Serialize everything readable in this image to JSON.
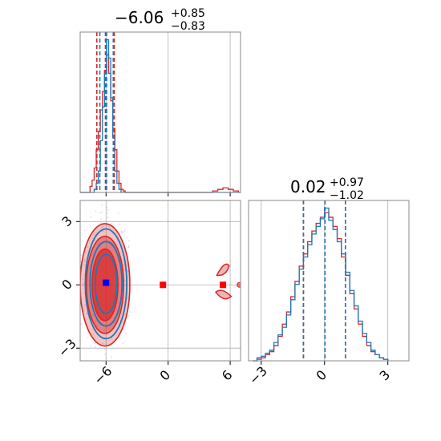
{
  "chart_data": {
    "type": "corner",
    "colors": {
      "series_a": "#d62728",
      "series_b": "#1f77b4",
      "marker_red": "#ff0000",
      "marker_blue": "#0000ff",
      "grid": "#b0b0b0",
      "frame": "#888888"
    },
    "params": [
      {
        "title_main": "−6.06",
        "title_sup": "+0.85",
        "title_sub": "−0.83",
        "median": -6.06,
        "q_low": -6.89,
        "q_high": -5.21
      },
      {
        "title_main": "0.02",
        "title_sup": "+0.97",
        "title_sub": "−1.02",
        "median": 0.02,
        "q_low": -1.0,
        "q_high": 0.99
      }
    ],
    "panels": [
      {
        "id": "hist-p1",
        "type": "histogram",
        "xlim": [
          -8.5,
          7
        ],
        "xticks": [
          -6,
          0,
          6
        ],
        "tick_labels_shown": false,
        "series": [
          {
            "name": "",
            "color": "#d62728",
            "quantiles": [
              -6.89,
              -6.06,
              -5.21
            ],
            "bins": [
              [
                -8.5,
                0
              ],
              [
                -7.75,
                0
              ],
              [
                -7.55,
                0.04
              ],
              [
                -7.35,
                0.08
              ],
              [
                -7.15,
                0.16
              ],
              [
                -6.95,
                0.28
              ],
              [
                -6.75,
                0.4
              ],
              [
                -6.55,
                0.54
              ],
              [
                -6.35,
                0.66
              ],
              [
                -6.15,
                0.8
              ],
              [
                -5.95,
                0.9
              ],
              [
                -5.75,
                0.78
              ],
              [
                -5.55,
                0.6
              ],
              [
                -5.35,
                0.42
              ],
              [
                -5.15,
                0.28
              ],
              [
                -4.95,
                0.14
              ],
              [
                -4.75,
                0.06
              ],
              [
                -4.55,
                0.02
              ],
              [
                -4.35,
                0.01
              ],
              [
                -4.15,
                0
              ],
              [
                4.3,
                0.01
              ],
              [
                4.8,
                0.02
              ],
              [
                5.3,
                0.03
              ],
              [
                5.8,
                0.02
              ],
              [
                6.3,
                0.01
              ],
              [
                6.8,
                0
              ]
            ]
          },
          {
            "name": "",
            "color": "#1f77b4",
            "quantiles": [
              -6.6,
              -5.95,
              -5.3
            ],
            "bins": [
              [
                -8.5,
                0
              ],
              [
                -7.35,
                0
              ],
              [
                -7.15,
                0.02
              ],
              [
                -6.95,
                0.06
              ],
              [
                -6.75,
                0.14
              ],
              [
                -6.55,
                0.34
              ],
              [
                -6.35,
                0.56
              ],
              [
                -6.15,
                0.78
              ],
              [
                -5.95,
                1.0
              ],
              [
                -5.75,
                0.88
              ],
              [
                -5.55,
                0.62
              ],
              [
                -5.35,
                0.36
              ],
              [
                -5.15,
                0.14
              ],
              [
                -4.95,
                0.06
              ],
              [
                -4.75,
                0.02
              ],
              [
                -4.55,
                0
              ],
              [
                7,
                0
              ]
            ]
          }
        ]
      },
      {
        "id": "joint-p1-p2",
        "type": "contour",
        "xlim": [
          -8.5,
          7
        ],
        "ylim": [
          -3.6,
          4.0
        ],
        "xticks": [
          -6,
          0,
          6
        ],
        "yticks": [
          -3,
          0,
          3
        ],
        "xtick_labels": [
          "−6",
          "0",
          "6"
        ],
        "ytick_labels": [
          "−3",
          "0",
          "3"
        ],
        "points": [
          {
            "label": "",
            "x": -6.0,
            "y": 0.1,
            "marker": "square",
            "color": "#0000ff"
          },
          {
            "label": "",
            "x": -0.5,
            "y": 0.0,
            "marker": "square",
            "color": "#ff0000"
          },
          {
            "label": "",
            "x": 5.3,
            "y": 0.0,
            "marker": "square",
            "color": "#ff0000"
          }
        ]
      },
      {
        "id": "hist-p2",
        "type": "histogram",
        "xlim": [
          -3.6,
          4.0
        ],
        "xticks": [
          -3,
          0,
          3
        ],
        "xtick_labels": [
          "−3",
          "0",
          "3"
        ],
        "series": [
          {
            "name": "",
            "color": "#d62728",
            "quantiles": [
              -1.0,
              0.02,
              0.99
            ],
            "bins": [
              [
                -3.4,
                0
              ],
              [
                -3.2,
                0.01
              ],
              [
                -3.0,
                0.02
              ],
              [
                -2.8,
                0.04
              ],
              [
                -2.6,
                0.06
              ],
              [
                -2.4,
                0.1
              ],
              [
                -2.2,
                0.16
              ],
              [
                -2.0,
                0.24
              ],
              [
                -1.8,
                0.32
              ],
              [
                -1.6,
                0.42
              ],
              [
                -1.4,
                0.52
              ],
              [
                -1.2,
                0.62
              ],
              [
                -1.0,
                0.7
              ],
              [
                -0.8,
                0.78
              ],
              [
                -0.6,
                0.85
              ],
              [
                -0.4,
                0.9
              ],
              [
                -0.2,
                0.94
              ],
              [
                0.0,
                0.97
              ],
              [
                0.2,
                0.94
              ],
              [
                0.4,
                0.88
              ],
              [
                0.6,
                0.8
              ],
              [
                0.8,
                0.68
              ],
              [
                1.0,
                0.56
              ],
              [
                1.2,
                0.44
              ],
              [
                1.4,
                0.34
              ],
              [
                1.6,
                0.24
              ],
              [
                1.8,
                0.16
              ],
              [
                2.0,
                0.1
              ],
              [
                2.2,
                0.06
              ],
              [
                2.4,
                0.04
              ],
              [
                2.6,
                0.02
              ],
              [
                2.8,
                0.01
              ],
              [
                3.0,
                0
              ]
            ]
          },
          {
            "name": "",
            "color": "#1f77b4",
            "quantiles": [
              -1.0,
              0.02,
              0.99
            ],
            "bins": [
              [
                -3.4,
                0
              ],
              [
                -3.2,
                0.02
              ],
              [
                -3.0,
                0.03
              ],
              [
                -2.8,
                0.05
              ],
              [
                -2.6,
                0.07
              ],
              [
                -2.4,
                0.12
              ],
              [
                -2.2,
                0.17
              ],
              [
                -2.0,
                0.22
              ],
              [
                -1.8,
                0.3
              ],
              [
                -1.6,
                0.4
              ],
              [
                -1.4,
                0.5
              ],
              [
                -1.2,
                0.6
              ],
              [
                -1.0,
                0.68
              ],
              [
                -0.8,
                0.76
              ],
              [
                -0.6,
                0.83
              ],
              [
                -0.4,
                0.88
              ],
              [
                -0.2,
                0.93
              ],
              [
                0.0,
                1.0
              ],
              [
                0.2,
                0.92
              ],
              [
                0.4,
                0.86
              ],
              [
                0.6,
                0.78
              ],
              [
                0.8,
                0.7
              ],
              [
                1.0,
                0.58
              ],
              [
                1.2,
                0.46
              ],
              [
                1.4,
                0.36
              ],
              [
                1.6,
                0.26
              ],
              [
                1.8,
                0.18
              ],
              [
                2.0,
                0.12
              ],
              [
                2.2,
                0.07
              ],
              [
                2.4,
                0.04
              ],
              [
                2.6,
                0.02
              ],
              [
                2.8,
                0.01
              ],
              [
                3.0,
                0
              ]
            ]
          }
        ]
      }
    ]
  }
}
